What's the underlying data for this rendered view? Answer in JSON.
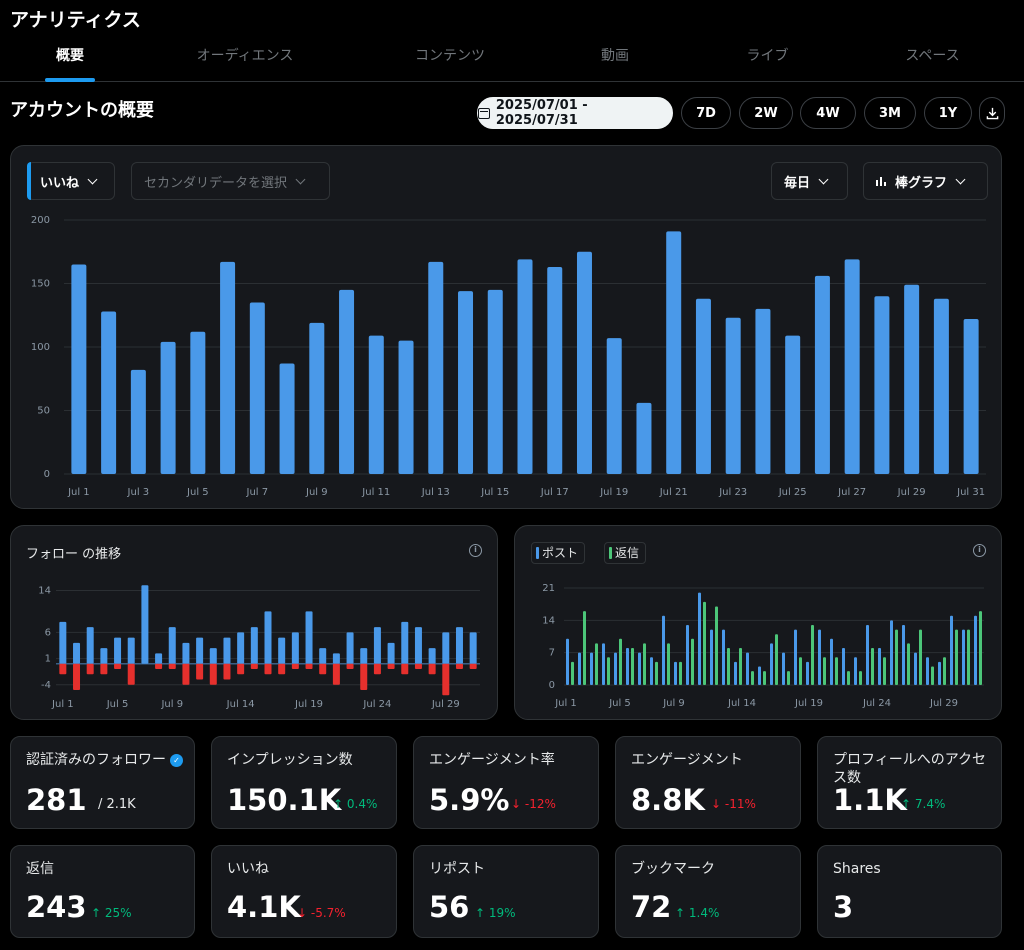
{
  "app": {
    "title": "アナリティクス"
  },
  "tabs": [
    {
      "label": "概要"
    },
    {
      "label": "オーディエンス"
    },
    {
      "label": "コンテンツ"
    },
    {
      "label": "動画"
    },
    {
      "label": "ライブ"
    },
    {
      "label": "スペース"
    }
  ],
  "overview": {
    "title": "アカウントの概要"
  },
  "date_range": {
    "label": "2025/07/01 - 2025/07/31"
  },
  "range_buttons": [
    "7D",
    "2W",
    "4W",
    "3M",
    "1Y"
  ],
  "main_chart_controls": {
    "primary_metric": "いいね",
    "secondary_placeholder": "セカンダリデータを選択",
    "interval": "毎日",
    "chart_type": "棒グラフ"
  },
  "follow_panel": {
    "title": "フォロー の推移"
  },
  "reply_panel": {
    "legend": [
      "ポスト",
      "返信"
    ]
  },
  "colors": {
    "primary": "#4a99e9",
    "green": "#4cc679",
    "red": "#e6302d",
    "up": "#00ba7c",
    "down": "#f4212e"
  },
  "stats": [
    {
      "label": "認証済みのフォロワー",
      "value": "281",
      "sub": "/ 2.1K",
      "verified": true
    },
    {
      "label": "インプレッション数",
      "value": "150.1K",
      "delta": "0.4%",
      "dir": "up"
    },
    {
      "label": "エンゲージメント率",
      "value": "5.9%",
      "delta": "-12%",
      "dir": "down"
    },
    {
      "label": "エンゲージメント",
      "value": "8.8K",
      "delta": "-11%",
      "dir": "down"
    },
    {
      "label": "プロフィールへのアクセス数",
      "value": "1.1K",
      "delta": "7.4%",
      "dir": "up"
    },
    {
      "label": "返信",
      "value": "243",
      "delta": "25%",
      "dir": "up"
    },
    {
      "label": "いいね",
      "value": "4.1K",
      "delta": "-5.7%",
      "dir": "down"
    },
    {
      "label": "リポスト",
      "value": "56",
      "delta": "19%",
      "dir": "up"
    },
    {
      "label": "ブックマーク",
      "value": "72",
      "delta": "1.4%",
      "dir": "up"
    },
    {
      "label": "Shares",
      "value": "3"
    }
  ],
  "chart_data": [
    {
      "type": "bar",
      "title": "",
      "series": [
        {
          "name": "いいね",
          "values": [
            165,
            128,
            82,
            104,
            112,
            167,
            135,
            87,
            119,
            145,
            109,
            105,
            167,
            144,
            145,
            169,
            163,
            175,
            107,
            56,
            191,
            138,
            123,
            130,
            109,
            156,
            169,
            140,
            149,
            138,
            122
          ]
        }
      ],
      "categories": [
        "Jul 1",
        "Jul 2",
        "Jul 3",
        "Jul 4",
        "Jul 5",
        "Jul 6",
        "Jul 7",
        "Jul 8",
        "Jul 9",
        "Jul 10",
        "Jul 11",
        "Jul 12",
        "Jul 13",
        "Jul 14",
        "Jul 15",
        "Jul 16",
        "Jul 17",
        "Jul 18",
        "Jul 19",
        "Jul 20",
        "Jul 21",
        "Jul 22",
        "Jul 23",
        "Jul 24",
        "Jul 25",
        "Jul 26",
        "Jul 27",
        "Jul 28",
        "Jul 29",
        "Jul 30",
        "Jul 31"
      ],
      "x_tick_labels": [
        "Jul 1",
        "Jul 3",
        "Jul 5",
        "Jul 7",
        "Jul 9",
        "Jul 11",
        "Jul 13",
        "Jul 15",
        "Jul 17",
        "Jul 19",
        "Jul 21",
        "Jul 23",
        "Jul 25",
        "Jul 27",
        "Jul 29",
        "Jul 31"
      ],
      "y_ticks": [
        0,
        50,
        100,
        150,
        200
      ],
      "ylim": [
        0,
        200
      ],
      "grid": true
    },
    {
      "type": "bar",
      "title": "フォロー の推移",
      "x": [
        "Jul 1",
        "Jul 2",
        "Jul 3",
        "Jul 4",
        "Jul 5",
        "Jul 6",
        "Jul 7",
        "Jul 8",
        "Jul 9",
        "Jul 10",
        "Jul 11",
        "Jul 12",
        "Jul 13",
        "Jul 14",
        "Jul 15",
        "Jul 16",
        "Jul 17",
        "Jul 18",
        "Jul 19",
        "Jul 20",
        "Jul 21",
        "Jul 22",
        "Jul 23",
        "Jul 24",
        "Jul 25",
        "Jul 26",
        "Jul 27",
        "Jul 28",
        "Jul 29",
        "Jul 30",
        "Jul 31"
      ],
      "series": [
        {
          "values": [
            8,
            4,
            7,
            3,
            5,
            5,
            15,
            2,
            7,
            4,
            5,
            3,
            5,
            6,
            7,
            10,
            5,
            6,
            10,
            3,
            2,
            6,
            3,
            7,
            4,
            8,
            7,
            3,
            6,
            7,
            6
          ]
        },
        {
          "values": [
            -2,
            -5,
            -2,
            -2,
            -1,
            -4,
            0,
            -1,
            -1,
            -4,
            -3,
            -4,
            -3,
            -2,
            -1,
            -2,
            -2,
            -1,
            -1,
            -2,
            -4,
            -1,
            -5,
            -2,
            -1,
            -2,
            -1,
            -2,
            -6,
            -1,
            -1
          ]
        }
      ],
      "x_tick_labels": [
        "Jul 1",
        "Jul 5",
        "Jul 9",
        "Jul 14",
        "Jul 19",
        "Jul 24",
        "Jul 29"
      ],
      "y_ticks": [
        -4,
        1,
        6,
        14
      ],
      "ylim": [
        -5,
        16
      ]
    },
    {
      "type": "bar",
      "series": [
        {
          "name": "ポスト",
          "values": [
            10,
            7,
            7,
            9,
            7,
            8,
            7,
            6,
            15,
            5,
            13,
            20,
            12,
            12,
            5,
            7,
            4,
            9,
            7,
            12,
            5,
            12,
            10,
            8,
            6,
            13,
            8,
            14,
            13,
            7,
            6,
            5,
            15,
            12,
            15
          ]
        },
        {
          "name": "返信",
          "values": [
            5,
            16,
            9,
            6,
            10,
            8,
            9,
            5,
            9,
            5,
            10,
            18,
            17,
            8,
            8,
            3,
            3,
            11,
            3,
            6,
            13,
            6,
            6,
            3,
            3,
            8,
            6,
            12,
            9,
            12,
            4,
            6,
            12,
            12,
            16
          ]
        }
      ],
      "x_tick_labels": [
        "Jul 1",
        "Jul 5",
        "Jul 9",
        "Jul 14",
        "Jul 19",
        "Jul 24",
        "Jul 29"
      ],
      "y_ticks": [
        0,
        7,
        14,
        21
      ],
      "ylim": [
        0,
        21
      ]
    }
  ]
}
